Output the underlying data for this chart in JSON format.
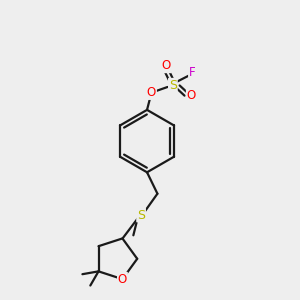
{
  "bg_color": "#eeeeee",
  "line_color": "#1a1a1a",
  "S_color": "#b8b800",
  "O_color": "#ff0000",
  "F_color": "#cc00cc",
  "line_width": 1.6,
  "font_size": 8.5,
  "figsize": [
    3.0,
    3.0
  ],
  "dpi": 100,
  "xlim": [
    0,
    10
  ],
  "ylim": [
    0,
    10
  ]
}
